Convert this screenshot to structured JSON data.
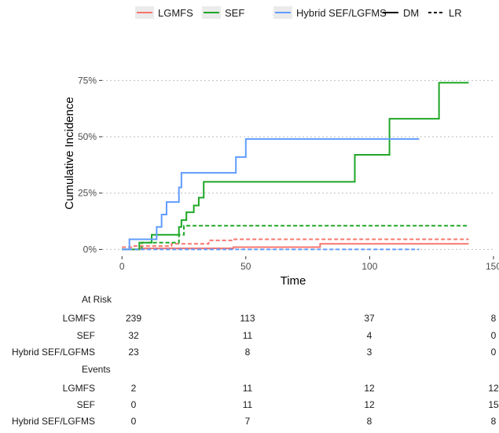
{
  "chart_data": {
    "type": "line",
    "title": "",
    "xlabel": "Time",
    "ylabel": "Cumulative Incidence",
    "xlim": [
      -8,
      150
    ],
    "ylim": [
      -0.03,
      0.8
    ],
    "x_ticks": [
      0,
      50,
      100,
      150
    ],
    "x_tick_labels": [
      "0",
      "50",
      "100",
      "150"
    ],
    "y_ticks": [
      0,
      0.25,
      0.5,
      0.75
    ],
    "y_tick_labels": [
      "0%",
      "25%",
      "50%",
      "75%"
    ],
    "grid": "horizontal-dotted",
    "legend_placement": "top",
    "legend": {
      "groups": [
        {
          "label": "LGMFS",
          "color": "#f8766d"
        },
        {
          "label": "SEF",
          "color": "#1fa727"
        },
        {
          "label": "Hybrid SEF/LGFMS",
          "color": "#619cff"
        }
      ],
      "linetypes": [
        {
          "label": "DM",
          "style": "solid"
        },
        {
          "label": "LR",
          "style": "dashed"
        }
      ]
    },
    "series": [
      {
        "group": "LGMFS",
        "event": "DM",
        "color": "#f8766d",
        "style": "solid",
        "x": [
          0,
          7,
          45,
          80,
          140
        ],
        "y": [
          0,
          0.005,
          0.01,
          0.025,
          0.025
        ]
      },
      {
        "group": "LGMFS",
        "event": "LR",
        "color": "#f8766d",
        "style": "dashed",
        "x": [
          0,
          5,
          20,
          35,
          45,
          140
        ],
        "y": [
          0.01,
          0.015,
          0.025,
          0.04,
          0.045,
          0.045
        ]
      },
      {
        "group": "SEF",
        "event": "DM",
        "color": "#1fa727",
        "style": "solid",
        "x": [
          0,
          7,
          12,
          23,
          24,
          26,
          29,
          31,
          33,
          94,
          108,
          128,
          140
        ],
        "y": [
          0,
          0.03,
          0.065,
          0.1,
          0.13,
          0.165,
          0.195,
          0.23,
          0.3,
          0.42,
          0.58,
          0.74,
          0.74
        ]
      },
      {
        "group": "SEF",
        "event": "LR",
        "color": "#1fa727",
        "style": "dashed",
        "x": [
          0,
          8,
          23,
          25,
          140
        ],
        "y": [
          0,
          0.03,
          0.065,
          0.105,
          0.105
        ]
      },
      {
        "group": "Hybrid SEF/LGFMS",
        "event": "DM",
        "color": "#619cff",
        "style": "solid",
        "x": [
          0,
          3,
          14,
          16,
          18,
          23,
          24,
          26,
          36,
          46,
          50,
          120
        ],
        "y": [
          0,
          0.045,
          0.1,
          0.155,
          0.21,
          0.275,
          0.34,
          0.34,
          0.34,
          0.41,
          0.49,
          0.49
        ]
      },
      {
        "group": "Hybrid SEF/LGFMS",
        "event": "LR",
        "color": "#619cff",
        "style": "dashed",
        "x": [
          0,
          120
        ],
        "y": [
          0,
          0
        ]
      }
    ]
  },
  "risk_table": {
    "at_risk_title": "At Risk",
    "events_title": "Events",
    "times": [
      0,
      50,
      100,
      150
    ],
    "at_risk": [
      {
        "label": "LGMFS",
        "values": [
          "239",
          "113",
          "37",
          "8"
        ]
      },
      {
        "label": "SEF",
        "values": [
          "32",
          "11",
          "4",
          "0"
        ]
      },
      {
        "label": "Hybrid SEF/LGFMS",
        "values": [
          "23",
          "8",
          "3",
          "0"
        ]
      }
    ],
    "events": [
      {
        "label": "LGMFS",
        "values": [
          "2",
          "11",
          "12",
          "12"
        ]
      },
      {
        "label": "SEF",
        "values": [
          "0",
          "11",
          "12",
          "15"
        ]
      },
      {
        "label": "Hybrid SEF/LGFMS",
        "values": [
          "0",
          "7",
          "8",
          "8"
        ]
      }
    ]
  }
}
